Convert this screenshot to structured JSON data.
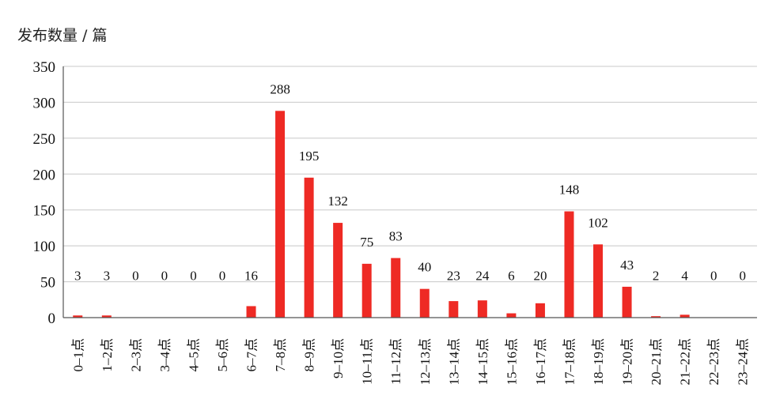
{
  "chart_data": {
    "type": "bar",
    "ylabel": "发布数量 / 篇",
    "xlabel": "",
    "title": "",
    "ylim": [
      0,
      350
    ],
    "yticks": [
      0,
      50,
      100,
      150,
      200,
      250,
      300,
      350
    ],
    "grid": true,
    "bar_color": "#ee2a24",
    "categories": [
      "0–1点",
      "1–2点",
      "2–3点",
      "3–4点",
      "4–5点",
      "5–6点",
      "6–7点",
      "7–8点",
      "8–9点",
      "9–10点",
      "10–11点",
      "11–12点",
      "12–13点",
      "13–14点",
      "14–15点",
      "15–16点",
      "16–17点",
      "17–18点",
      "18–19点",
      "19–20点",
      "20–21点",
      "21–22点",
      "22–23点",
      "23–24点"
    ],
    "values": [
      3,
      3,
      0,
      0,
      0,
      0,
      16,
      288,
      195,
      132,
      75,
      83,
      40,
      23,
      24,
      6,
      20,
      148,
      102,
      43,
      2,
      4,
      0,
      0
    ]
  }
}
